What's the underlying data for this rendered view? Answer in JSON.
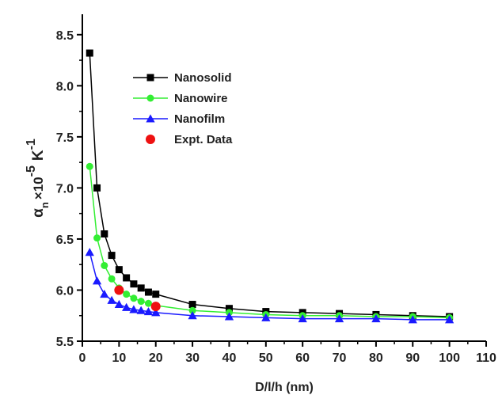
{
  "chart_data": {
    "type": "line",
    "title": "",
    "xlabel": "D/l/h (nm)",
    "ylabel": {
      "main": "α",
      "subscript": "n",
      "multiplier": "×10",
      "exponent": "-5",
      "unit": "K",
      "unit_exponent": "-1"
    },
    "xlim": [
      0,
      110
    ],
    "ylim": [
      5.5,
      8.7
    ],
    "x_ticks": [
      0,
      10,
      20,
      30,
      40,
      50,
      60,
      70,
      80,
      90,
      100,
      110
    ],
    "y_ticks": [
      5.5,
      6.0,
      6.5,
      7.0,
      7.5,
      8.0,
      8.5
    ],
    "x_tick_labels": [
      "0",
      "10",
      "20",
      "30",
      "40",
      "50",
      "60",
      "70",
      "80",
      "90",
      "100",
      "110"
    ],
    "y_tick_labels": [
      "5.5",
      "6.0",
      "6.5",
      "7.0",
      "7.5",
      "8.0",
      "8.5"
    ],
    "grid": false,
    "legend_position": "top-left",
    "series": [
      {
        "name": "Nanosolid",
        "color": "#000000",
        "marker": "square",
        "x": [
          2,
          4,
          6,
          8,
          10,
          12,
          14,
          16,
          18,
          20,
          30,
          40,
          50,
          60,
          70,
          80,
          90,
          100
        ],
        "y": [
          8.32,
          7.0,
          6.55,
          6.34,
          6.2,
          6.12,
          6.06,
          6.02,
          5.98,
          5.96,
          5.86,
          5.82,
          5.79,
          5.78,
          5.77,
          5.76,
          5.75,
          5.74
        ]
      },
      {
        "name": "Nanowire",
        "color": "#33ee33",
        "marker": "circle",
        "x": [
          2,
          4,
          6,
          8,
          10,
          12,
          14,
          16,
          18,
          20,
          30,
          40,
          50,
          60,
          70,
          80,
          90,
          100
        ],
        "y": [
          7.21,
          6.51,
          6.24,
          6.11,
          6.02,
          5.96,
          5.92,
          5.89,
          5.87,
          5.85,
          5.8,
          5.78,
          5.76,
          5.75,
          5.75,
          5.74,
          5.74,
          5.73
        ]
      },
      {
        "name": "Nanofilm",
        "color": "#1a1aff",
        "marker": "triangle",
        "x": [
          2,
          4,
          6,
          8,
          10,
          12,
          14,
          16,
          18,
          20,
          30,
          40,
          50,
          60,
          70,
          80,
          90,
          100
        ],
        "y": [
          6.37,
          6.09,
          5.96,
          5.9,
          5.86,
          5.83,
          5.81,
          5.8,
          5.79,
          5.78,
          5.75,
          5.74,
          5.73,
          5.72,
          5.72,
          5.72,
          5.71,
          5.71
        ]
      },
      {
        "name": "Expt. Data",
        "color": "#ee1111",
        "marker": "circle",
        "line": false,
        "x": [
          10,
          20
        ],
        "y": [
          6.0,
          5.84
        ]
      }
    ]
  }
}
